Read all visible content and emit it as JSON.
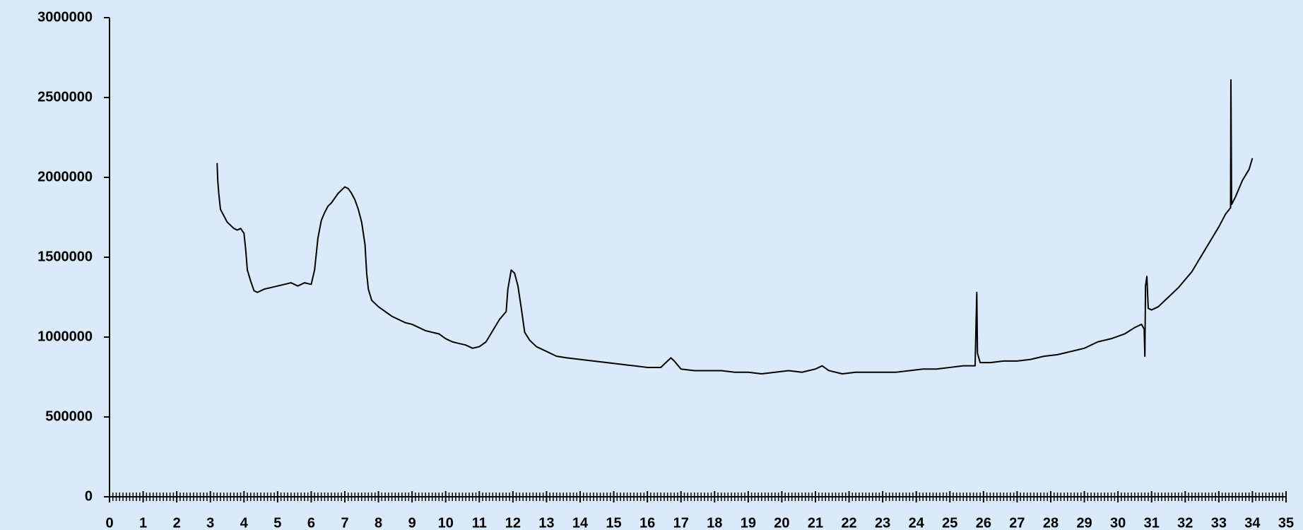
{
  "chart_data": {
    "type": "line",
    "color": "#000000",
    "x": [
      3.2,
      3.22,
      3.25,
      3.3,
      3.4,
      3.5,
      3.6,
      3.7,
      3.8,
      3.9,
      4.0,
      4.05,
      4.1,
      4.2,
      4.3,
      4.4,
      4.6,
      4.8,
      5.0,
      5.2,
      5.4,
      5.6,
      5.8,
      6.0,
      6.1,
      6.2,
      6.3,
      6.4,
      6.5,
      6.6,
      6.7,
      6.8,
      6.9,
      7.0,
      7.1,
      7.2,
      7.3,
      7.4,
      7.5,
      7.6,
      7.65,
      7.7,
      7.8,
      8.0,
      8.2,
      8.4,
      8.6,
      8.8,
      9.0,
      9.2,
      9.4,
      9.6,
      9.8,
      10.0,
      10.2,
      10.4,
      10.6,
      10.8,
      11.0,
      11.2,
      11.4,
      11.6,
      11.8,
      11.85,
      11.95,
      12.05,
      12.15,
      12.25,
      12.35,
      12.5,
      12.7,
      13.0,
      13.3,
      13.6,
      14.0,
      14.4,
      14.8,
      15.2,
      15.6,
      16.0,
      16.4,
      16.7,
      16.8,
      17.0,
      17.4,
      17.8,
      18.2,
      18.6,
      19.0,
      19.4,
      19.8,
      20.2,
      20.6,
      21.0,
      21.2,
      21.4,
      21.8,
      22.2,
      22.6,
      23.0,
      23.4,
      23.8,
      24.2,
      24.6,
      25.0,
      25.4,
      25.75,
      25.8,
      25.82,
      25.9,
      26.2,
      26.6,
      27.0,
      27.4,
      27.8,
      28.2,
      28.6,
      29.0,
      29.4,
      29.8,
      30.2,
      30.5,
      30.7,
      30.78,
      30.8,
      30.82,
      30.86,
      30.9,
      31.0,
      31.2,
      31.4,
      31.6,
      31.8,
      32.0,
      32.2,
      32.4,
      32.6,
      32.8,
      33.0,
      33.2,
      33.35,
      33.36,
      33.38,
      33.5,
      33.7,
      33.9,
      34.0
    ],
    "values": [
      2090000,
      1980000,
      1900000,
      1800000,
      1760000,
      1720000,
      1700000,
      1680000,
      1670000,
      1680000,
      1650000,
      1550000,
      1420000,
      1350000,
      1290000,
      1280000,
      1300000,
      1310000,
      1320000,
      1330000,
      1340000,
      1320000,
      1340000,
      1330000,
      1420000,
      1620000,
      1730000,
      1780000,
      1820000,
      1840000,
      1870000,
      1900000,
      1920000,
      1940000,
      1930000,
      1900000,
      1860000,
      1800000,
      1720000,
      1580000,
      1400000,
      1300000,
      1230000,
      1190000,
      1160000,
      1130000,
      1110000,
      1090000,
      1080000,
      1060000,
      1040000,
      1030000,
      1020000,
      990000,
      970000,
      960000,
      950000,
      930000,
      940000,
      970000,
      1040000,
      1110000,
      1160000,
      1300000,
      1420000,
      1400000,
      1320000,
      1180000,
      1030000,
      980000,
      940000,
      910000,
      880000,
      870000,
      860000,
      850000,
      840000,
      830000,
      820000,
      810000,
      810000,
      870000,
      850000,
      800000,
      790000,
      790000,
      790000,
      780000,
      780000,
      770000,
      780000,
      790000,
      780000,
      800000,
      820000,
      790000,
      770000,
      780000,
      780000,
      780000,
      780000,
      790000,
      800000,
      800000,
      810000,
      820000,
      820000,
      1280000,
      900000,
      840000,
      840000,
      850000,
      850000,
      860000,
      880000,
      890000,
      910000,
      930000,
      970000,
      990000,
      1020000,
      1060000,
      1080000,
      1050000,
      880000,
      1320000,
      1380000,
      1180000,
      1170000,
      1190000,
      1230000,
      1270000,
      1310000,
      1360000,
      1410000,
      1480000,
      1550000,
      1620000,
      1690000,
      1770000,
      1810000,
      2610000,
      1830000,
      1880000,
      1980000,
      2050000,
      2120000
    ],
    "xlim": [
      0,
      35
    ],
    "xticks": [
      0,
      1,
      2,
      3,
      4,
      5,
      6,
      7,
      8,
      9,
      10,
      11,
      12,
      13,
      14,
      15,
      16,
      17,
      18,
      19,
      20,
      21,
      22,
      23,
      24,
      25,
      26,
      27,
      28,
      29,
      30,
      31,
      32,
      33,
      34,
      35
    ],
    "x_minor_ticks_per_unit": 10,
    "ylim": [
      0,
      3000000
    ],
    "yticks": [
      0,
      500000,
      1000000,
      1500000,
      2000000,
      2500000,
      3000000
    ]
  }
}
